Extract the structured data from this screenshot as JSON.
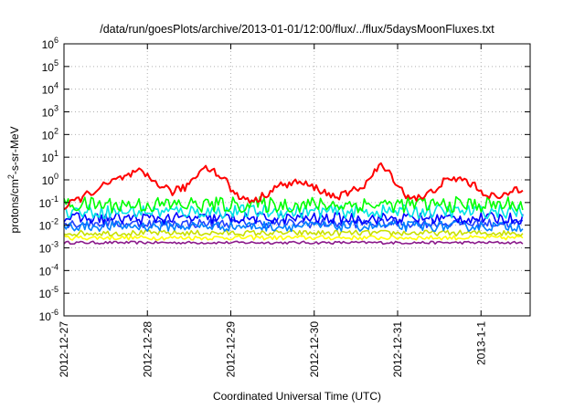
{
  "chart_data": {
    "type": "line",
    "title": "/data/run/goesPlots/archive/2013-01-01/12:00/flux/../flux/5daysMoonFluxes.txt",
    "xlabel": "Coordinated Universal Time (UTC)",
    "ylabel_parts": [
      "protons/cm",
      "2",
      "-s-sr-MeV"
    ],
    "x_range": [
      "2012-12-27T00:00",
      "2013-01-01T12:00"
    ],
    "x_ticks": [
      "2012-12-27",
      "2012-12-28",
      "2012-12-29",
      "2012-12-30",
      "2012-12-31",
      "2013-1-1"
    ],
    "y_scale": "log",
    "y_range": [
      1e-06,
      1000000.0
    ],
    "y_ticks": [
      {
        "base": "10",
        "exp": "-6"
      },
      {
        "base": "10",
        "exp": "-5"
      },
      {
        "base": "10",
        "exp": "-4"
      },
      {
        "base": "10",
        "exp": "-3"
      },
      {
        "base": "10",
        "exp": "-2"
      },
      {
        "base": "10",
        "exp": "-1"
      },
      {
        "base": "10",
        "exp": "0"
      },
      {
        "base": "10",
        "exp": "1"
      },
      {
        "base": "10",
        "exp": "2"
      },
      {
        "base": "10",
        "exp": "3"
      },
      {
        "base": "10",
        "exp": "4"
      },
      {
        "base": "10",
        "exp": "5"
      },
      {
        "base": "10",
        "exp": "6"
      }
    ],
    "grid": true,
    "legend": "none",
    "series": [
      {
        "color": "#ff0000",
        "x_days": [
          0,
          0.1,
          0.3,
          0.6,
          0.9,
          1.05,
          1.3,
          1.45,
          1.7,
          1.95,
          2.05,
          2.3,
          2.55,
          2.8,
          3.05,
          3.2,
          3.35,
          3.6,
          3.8,
          3.95,
          4.1,
          4.3,
          4.55,
          4.75,
          4.9,
          5.05,
          5.25,
          5.4,
          5.5
        ],
        "values": [
          0.05,
          0.1,
          0.25,
          0.9,
          2.2,
          1.0,
          0.3,
          0.45,
          4.5,
          0.9,
          0.2,
          0.12,
          0.5,
          0.8,
          0.4,
          0.2,
          0.2,
          0.6,
          4.5,
          1.2,
          0.2,
          0.15,
          0.8,
          1.2,
          0.6,
          0.25,
          0.15,
          0.4,
          0.4
        ]
      },
      {
        "color": "#00ff00",
        "base": 0.08,
        "noise": 0.7
      },
      {
        "color": "#00e5e5",
        "base": 0.04,
        "noise": 0.6
      },
      {
        "color": "#0000ff",
        "base": 0.02,
        "noise": 0.5
      },
      {
        "color": "#0080ff",
        "base": 0.009,
        "noise": 0.45
      },
      {
        "color": "#2040ff",
        "base": 0.012,
        "noise": 0.4
      },
      {
        "color": "#c8e000",
        "base": 0.0045,
        "noise": 0.25
      },
      {
        "color": "#ffff00",
        "base": 0.0028,
        "noise": 0.2
      },
      {
        "color": "#8b1a8b",
        "base": 0.0017,
        "noise": 0.12
      }
    ]
  }
}
